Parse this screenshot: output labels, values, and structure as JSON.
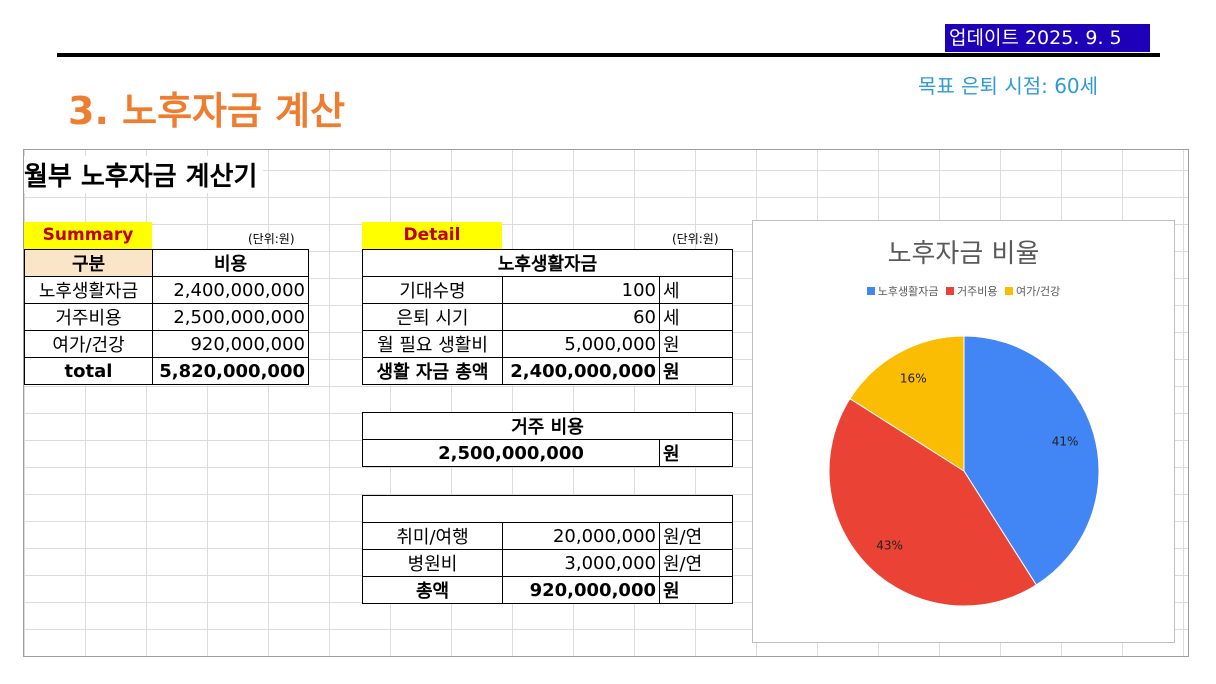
{
  "header": {
    "update_text": "업데이트 2025. 9. 5",
    "retire_age": "목표 은퇴 시점: 60세",
    "title": "3. 노후자금 계산"
  },
  "sheet": {
    "title": "월부 노후자금 계산기"
  },
  "summary": {
    "label": "Summary",
    "unit": "(단위:원)",
    "headers": [
      "구분",
      "비용"
    ],
    "rows": [
      {
        "name": "노후생활자금",
        "value": "2,400,000,000"
      },
      {
        "name": "거주비용",
        "value": "2,500,000,000"
      },
      {
        "name": "여가/건강",
        "value": "920,000,000"
      }
    ],
    "total_label": "total",
    "total_value": "5,820,000,000"
  },
  "detail": {
    "label": "Detail",
    "unit": "(단위:원)",
    "living": {
      "header": "노후생활자금",
      "rows": [
        {
          "name": "기대수명",
          "value": "100",
          "unit": "세"
        },
        {
          "name": "은퇴 시기",
          "value": "60",
          "unit": "세"
        },
        {
          "name": "월 필요 생활비",
          "value": "5,000,000",
          "unit": "원"
        }
      ],
      "total": {
        "name": "생활 자금 총액",
        "value": "2,400,000,000",
        "unit": "원"
      }
    },
    "housing": {
      "header": "거주 비용",
      "value": "2,500,000,000",
      "unit": "원"
    },
    "leisure": {
      "rows": [
        {
          "name": "취미/여행",
          "value": "20,000,000",
          "unit": "원/연"
        },
        {
          "name": "병원비",
          "value": "3,000,000",
          "unit": "원/연"
        }
      ],
      "total": {
        "name": "총액",
        "value": "920,000,000",
        "unit": "원"
      }
    }
  },
  "chart_data": {
    "type": "pie",
    "title": "노후자금 비율",
    "legend_position": "top",
    "categories": [
      "노후생활자금",
      "거주비용",
      "여가/건강"
    ],
    "values": [
      41,
      43,
      16
    ],
    "labels": [
      "41%",
      "43%",
      "16%"
    ],
    "colors": [
      "#4285f4",
      "#ea4335",
      "#fbbc04"
    ]
  }
}
